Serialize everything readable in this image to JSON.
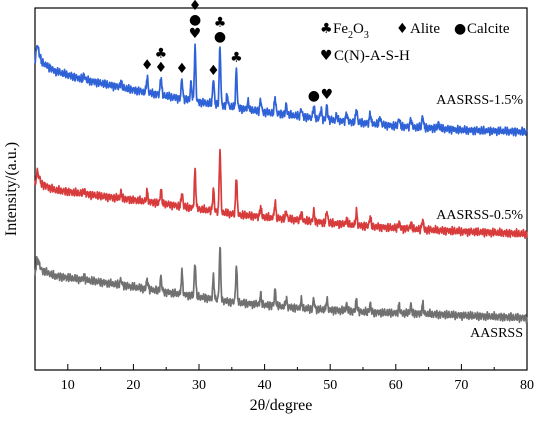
{
  "chart_data": {
    "type": "line",
    "xlabel": "2θ/degree",
    "ylabel": "Intensity/(a.u.)",
    "xlim": [
      5,
      80
    ],
    "xticks": [
      10,
      20,
      30,
      40,
      50,
      60,
      70,
      80
    ],
    "grid": false,
    "series": [
      {
        "name": "AASRSS-1.5%",
        "color": "#2f62d6",
        "label_near_x": 73,
        "peaks": [
          [
            12.5,
            5
          ],
          [
            18.1,
            6
          ],
          [
            22.1,
            16
          ],
          [
            24.2,
            18
          ],
          [
            27.4,
            20
          ],
          [
            28.8,
            18
          ],
          [
            29.4,
            54
          ],
          [
            32.2,
            26
          ],
          [
            33.2,
            58
          ],
          [
            34.3,
            12
          ],
          [
            35.7,
            38
          ],
          [
            37.5,
            8
          ],
          [
            39.4,
            12
          ],
          [
            41.6,
            16
          ],
          [
            43.3,
            10
          ],
          [
            45.6,
            8
          ],
          [
            47.5,
            12
          ],
          [
            48.6,
            10
          ],
          [
            49.5,
            14
          ],
          [
            51.0,
            6
          ],
          [
            52.5,
            8
          ],
          [
            54.0,
            14
          ],
          [
            56.1,
            10
          ],
          [
            57.6,
            8
          ],
          [
            60.5,
            8
          ],
          [
            62.3,
            8
          ],
          [
            64.1,
            12
          ],
          [
            66.5,
            5
          ]
        ],
        "baseline": [
          [
            5,
            78
          ],
          [
            5.3,
            98
          ],
          [
            6,
            80
          ],
          [
            8,
            71
          ],
          [
            12,
            63
          ],
          [
            20,
            52
          ],
          [
            30,
            40
          ],
          [
            40,
            30
          ],
          [
            50,
            22
          ],
          [
            60,
            16
          ],
          [
            70,
            12
          ],
          [
            80,
            10
          ]
        ]
      },
      {
        "name": "AASRSS-0.5%",
        "color": "#d83b3b",
        "label_near_x": 73,
        "peaks": [
          [
            12.5,
            4
          ],
          [
            18.1,
            6
          ],
          [
            22.1,
            10
          ],
          [
            24.2,
            14
          ],
          [
            27.4,
            14
          ],
          [
            29.4,
            38
          ],
          [
            32.2,
            22
          ],
          [
            33.2,
            62
          ],
          [
            35.7,
            38
          ],
          [
            39.4,
            10
          ],
          [
            41.6,
            16
          ],
          [
            43.3,
            8
          ],
          [
            45.6,
            8
          ],
          [
            47.5,
            10
          ],
          [
            49.5,
            12
          ],
          [
            52.5,
            6
          ],
          [
            54.0,
            14
          ],
          [
            56.1,
            10
          ],
          [
            60.5,
            6
          ],
          [
            62.3,
            6
          ],
          [
            64.1,
            10
          ]
        ],
        "baseline": [
          [
            5,
            50
          ],
          [
            5.3,
            67
          ],
          [
            6,
            54
          ],
          [
            8,
            48
          ],
          [
            15,
            42
          ],
          [
            25,
            34
          ],
          [
            35,
            24
          ],
          [
            45,
            18
          ],
          [
            55,
            12
          ],
          [
            65,
            8
          ],
          [
            80,
            4
          ]
        ]
      },
      {
        "name": "AASRSS",
        "color": "#707070",
        "label_near_x": 73,
        "peaks": [
          [
            12.5,
            4
          ],
          [
            18.1,
            6
          ],
          [
            22.1,
            10
          ],
          [
            24.2,
            14
          ],
          [
            27.4,
            22
          ],
          [
            29.4,
            34
          ],
          [
            32.2,
            22
          ],
          [
            33.2,
            52
          ],
          [
            35.7,
            36
          ],
          [
            39.4,
            10
          ],
          [
            41.6,
            16
          ],
          [
            43.3,
            8
          ],
          [
            45.6,
            8
          ],
          [
            47.5,
            10
          ],
          [
            49.5,
            10
          ],
          [
            52.5,
            6
          ],
          [
            54.0,
            12
          ],
          [
            56.1,
            8
          ],
          [
            60.5,
            8
          ],
          [
            62.3,
            8
          ],
          [
            64.1,
            10
          ]
        ],
        "baseline": [
          [
            5,
            42
          ],
          [
            5.3,
            58
          ],
          [
            6,
            46
          ],
          [
            8,
            40
          ],
          [
            15,
            34
          ],
          [
            25,
            24
          ],
          [
            35,
            14
          ],
          [
            45,
            8
          ],
          [
            55,
            4
          ],
          [
            65,
            2
          ],
          [
            80,
            -2
          ]
        ]
      }
    ],
    "legend": {
      "position": "top-right",
      "entries": [
        {
          "symbol": "♣",
          "label_main": "Fe",
          "label_sub1": "2",
          "label_mid": "O",
          "label_sub2": "3"
        },
        {
          "symbol": "♦",
          "label": "Alite"
        },
        {
          "symbol": "●",
          "label": "Calcite"
        },
        {
          "symbol": "♥",
          "label": "C(N)-A-S-H"
        }
      ]
    },
    "annotations": [
      {
        "symbol": "♦",
        "x": 22.1
      },
      {
        "symbol": "♦",
        "x": 24.2
      },
      {
        "symbol": "♣",
        "x": 24.2
      },
      {
        "symbol": "♦",
        "x": 27.4
      },
      {
        "symbol": "♥",
        "x": 29.4
      },
      {
        "symbol": "●",
        "x": 29.4
      },
      {
        "symbol": "♦",
        "x": 29.4
      },
      {
        "symbol": "♦",
        "x": 32.2
      },
      {
        "symbol": "●",
        "x": 33.2
      },
      {
        "symbol": "♣",
        "x": 33.2
      },
      {
        "symbol": "♣",
        "x": 35.7
      },
      {
        "symbol": "●",
        "x": 47.5
      },
      {
        "symbol": "♥",
        "x": 49.5
      }
    ]
  }
}
